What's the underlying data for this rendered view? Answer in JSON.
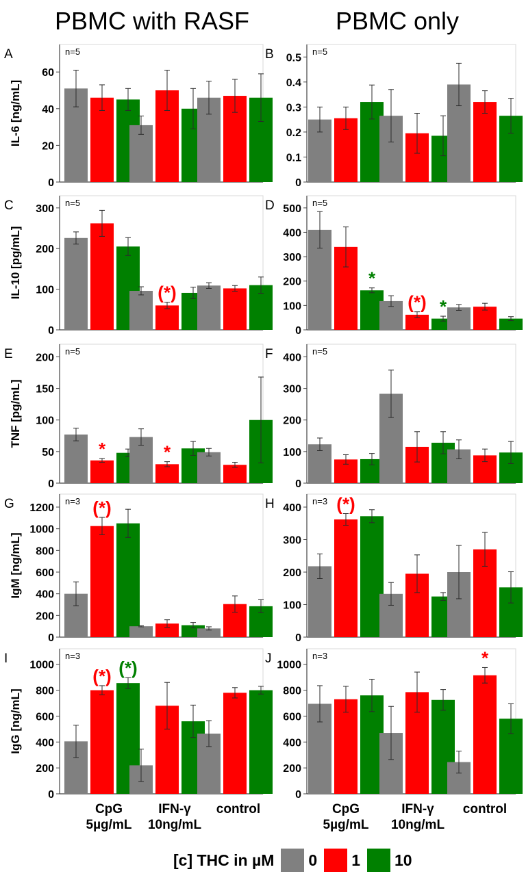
{
  "column_titles": [
    "PBMC with RASF",
    "PBMC only"
  ],
  "x_categories": [
    [
      "CpG",
      "5µg/mL"
    ],
    [
      "IFN-γ",
      "10ng/mL"
    ],
    [
      "control",
      ""
    ]
  ],
  "legend": {
    "title": "[c] THC in µM",
    "items": [
      {
        "label": "0",
        "color": "#808080"
      },
      {
        "label": "1",
        "color": "#ff0000"
      },
      {
        "label": "10",
        "color": "#008000"
      }
    ]
  },
  "colors": {
    "thc_0": "#808080",
    "thc_1": "#ff0000",
    "thc_10": "#008000"
  },
  "chart_data": [
    {
      "type": "bar",
      "panel": "A",
      "ylabel": "IL-6 [ng/mL]",
      "n_label": "n=5",
      "ylim": [
        0,
        75
      ],
      "yticks": [
        0,
        20,
        40,
        60
      ],
      "tick_labels": [
        "0",
        "20",
        "40",
        "60"
      ],
      "categories": [
        "CpG 5µg/mL",
        "IFN-γ 10ng/mL",
        "control"
      ],
      "series": [
        {
          "name": "0",
          "values": [
            51,
            31,
            46
          ],
          "errors": [
            10,
            5,
            9
          ]
        },
        {
          "name": "1",
          "values": [
            46,
            50,
            47
          ],
          "errors": [
            7,
            11,
            9
          ]
        },
        {
          "name": "10",
          "values": [
            45,
            40,
            46
          ],
          "errors": [
            6,
            11,
            13
          ]
        }
      ],
      "annotations": []
    },
    {
      "type": "bar",
      "panel": "B",
      "ylabel": "",
      "n_label": "n=5",
      "ylim": [
        0,
        0.55
      ],
      "yticks": [
        0,
        0.1,
        0.2,
        0.3,
        0.4,
        0.5
      ],
      "tick_labels": [
        "0",
        "0.1",
        "0.2",
        "0.3",
        "0.4",
        "0.5"
      ],
      "categories": [
        "CpG 5µg/mL",
        "IFN-γ 10ng/mL",
        "control"
      ],
      "series": [
        {
          "name": "0",
          "values": [
            0.25,
            0.265,
            0.39
          ],
          "errors": [
            0.05,
            0.105,
            0.085
          ]
        },
        {
          "name": "1",
          "values": [
            0.255,
            0.195,
            0.32
          ],
          "errors": [
            0.045,
            0.08,
            0.045
          ]
        },
        {
          "name": "10",
          "values": [
            0.32,
            0.185,
            0.265
          ],
          "errors": [
            0.068,
            0.08,
            0.07
          ]
        }
      ],
      "annotations": []
    },
    {
      "type": "bar",
      "panel": "C",
      "ylabel": "IL-10 [pg/mL]",
      "n_label": "n=5",
      "ylim": [
        0,
        330
      ],
      "yticks": [
        0,
        100,
        200,
        300
      ],
      "tick_labels": [
        "0",
        "100",
        "200",
        "300"
      ],
      "categories": [
        "CpG 5µg/mL",
        "IFN-γ 10ng/mL",
        "control"
      ],
      "series": [
        {
          "name": "0",
          "values": [
            226,
            96,
            109
          ],
          "errors": [
            15,
            10,
            7
          ]
        },
        {
          "name": "1",
          "values": [
            262,
            60,
            102
          ],
          "errors": [
            32,
            8,
            7
          ]
        },
        {
          "name": "10",
          "values": [
            205,
            91,
            110
          ],
          "errors": [
            22,
            14,
            20
          ]
        }
      ],
      "annotations": [
        {
          "category": 1,
          "series": 1,
          "text": "(*)"
        }
      ]
    },
    {
      "type": "bar",
      "panel": "D",
      "ylabel": "",
      "n_label": "n=5",
      "ylim": [
        0,
        550
      ],
      "yticks": [
        0,
        100,
        200,
        300,
        400,
        500
      ],
      "tick_labels": [
        "0",
        "100",
        "200",
        "300",
        "400",
        "500"
      ],
      "categories": [
        "CpG 5µg/mL",
        "IFN-γ 10ng/mL",
        "control"
      ],
      "series": [
        {
          "name": "0",
          "values": [
            410,
            118,
            92
          ],
          "errors": [
            75,
            22,
            12
          ]
        },
        {
          "name": "1",
          "values": [
            340,
            62,
            95
          ],
          "errors": [
            82,
            12,
            14
          ]
        },
        {
          "name": "10",
          "values": [
            162,
            46,
            46
          ],
          "errors": [
            10,
            10,
            8
          ]
        }
      ],
      "annotations": [
        {
          "category": 0,
          "series": 2,
          "text": "*"
        },
        {
          "category": 1,
          "series": 1,
          "text": "(*)"
        },
        {
          "category": 1,
          "series": 2,
          "text": "*"
        }
      ]
    },
    {
      "type": "bar",
      "panel": "E",
      "ylabel": "TNF [pg/mL]",
      "n_label": "n=5",
      "ylim": [
        0,
        220
      ],
      "yticks": [
        0,
        50,
        100,
        150,
        200
      ],
      "tick_labels": [
        "0",
        "50",
        "100",
        "150",
        "200"
      ],
      "categories": [
        "CpG 5µg/mL",
        "IFN-γ 10ng/mL",
        "control"
      ],
      "series": [
        {
          "name": "0",
          "values": [
            77,
            73,
            49
          ],
          "errors": [
            10,
            13,
            6
          ]
        },
        {
          "name": "1",
          "values": [
            36,
            30,
            29
          ],
          "errors": [
            3,
            4,
            4
          ]
        },
        {
          "name": "10",
          "values": [
            48,
            55,
            100
          ],
          "errors": [
            6,
            11,
            68
          ]
        }
      ],
      "annotations": [
        {
          "category": 0,
          "series": 1,
          "text": "*"
        },
        {
          "category": 1,
          "series": 1,
          "text": "*"
        }
      ]
    },
    {
      "type": "bar",
      "panel": "F",
      "ylabel": "",
      "n_label": "n=5",
      "ylim": [
        0,
        440
      ],
      "yticks": [
        0,
        100,
        200,
        300,
        400
      ],
      "tick_labels": [
        "0",
        "100",
        "200",
        "300",
        "400"
      ],
      "categories": [
        "CpG 5µg/mL",
        "IFN-γ 10ng/mL",
        "control"
      ],
      "series": [
        {
          "name": "0",
          "values": [
            123,
            283,
            107
          ],
          "errors": [
            20,
            75,
            30
          ]
        },
        {
          "name": "1",
          "values": [
            75,
            115,
            88
          ],
          "errors": [
            15,
            48,
            20
          ]
        },
        {
          "name": "10",
          "values": [
            76,
            128,
            97
          ],
          "errors": [
            18,
            35,
            35
          ]
        }
      ],
      "annotations": []
    },
    {
      "type": "bar",
      "panel": "G",
      "ylabel": "IgM [ng/mL]",
      "n_label": "n=3",
      "ylim": [
        0,
        1320
      ],
      "yticks": [
        0,
        200,
        400,
        600,
        800,
        1000,
        1200
      ],
      "tick_labels": [
        "0",
        "200",
        "400",
        "600",
        "800",
        "1000",
        "1200"
      ],
      "categories": [
        "CpG 5µg/mL",
        "IFN-γ 10ng/mL",
        "control"
      ],
      "series": [
        {
          "name": "0",
          "values": [
            400,
            100,
            80
          ],
          "errors": [
            110,
            5,
            15
          ]
        },
        {
          "name": "1",
          "values": [
            1025,
            125,
            305
          ],
          "errors": [
            80,
            35,
            75
          ]
        },
        {
          "name": "10",
          "values": [
            1050,
            110,
            285
          ],
          "errors": [
            130,
            25,
            60
          ]
        }
      ],
      "annotations": [
        {
          "category": 0,
          "series": 1,
          "text": "(*)"
        }
      ]
    },
    {
      "type": "bar",
      "panel": "H",
      "ylabel": "",
      "n_label": "n=3",
      "ylim": [
        0,
        440
      ],
      "yticks": [
        0,
        100,
        200,
        300,
        400
      ],
      "tick_labels": [
        "0",
        "100",
        "200",
        "300",
        "400"
      ],
      "categories": [
        "CpG 5µg/mL",
        "IFN-γ 10ng/mL",
        "control"
      ],
      "series": [
        {
          "name": "0",
          "values": [
            218,
            133,
            200
          ],
          "errors": [
            38,
            35,
            82
          ]
        },
        {
          "name": "1",
          "values": [
            362,
            195,
            270
          ],
          "errors": [
            18,
            58,
            52
          ]
        },
        {
          "name": "10",
          "values": [
            372,
            125,
            153
          ],
          "errors": [
            20,
            12,
            48
          ]
        }
      ],
      "annotations": [
        {
          "category": 0,
          "series": 1,
          "text": "(*)"
        }
      ]
    },
    {
      "type": "bar",
      "panel": "I",
      "ylabel": "IgG [ng/mL]",
      "n_label": "n=3",
      "ylim": [
        0,
        1120
      ],
      "yticks": [
        0,
        200,
        400,
        600,
        800,
        1000
      ],
      "tick_labels": [
        "0",
        "200",
        "400",
        "600",
        "800",
        "1000"
      ],
      "categories": [
        "CpG 5µg/mL",
        "IFN-γ 10ng/mL",
        "control"
      ],
      "series": [
        {
          "name": "0",
          "values": [
            405,
            220,
            465
          ],
          "errors": [
            125,
            125,
            100
          ]
        },
        {
          "name": "1",
          "values": [
            800,
            680,
            780
          ],
          "errors": [
            35,
            180,
            40
          ]
        },
        {
          "name": "10",
          "values": [
            855,
            560,
            800
          ],
          "errors": [
            42,
            125,
            30
          ]
        }
      ],
      "annotations": [
        {
          "category": 0,
          "series": 1,
          "text": "(*)"
        },
        {
          "category": 0,
          "series": 2,
          "text": "(*)"
        }
      ]
    },
    {
      "type": "bar",
      "panel": "J",
      "ylabel": "",
      "n_label": "n=3",
      "ylim": [
        0,
        1120
      ],
      "yticks": [
        0,
        200,
        400,
        600,
        800,
        1000
      ],
      "tick_labels": [
        "0",
        "200",
        "400",
        "600",
        "800",
        "1000"
      ],
      "categories": [
        "CpG 5µg/mL",
        "IFN-γ 10ng/mL",
        "control"
      ],
      "series": [
        {
          "name": "0",
          "values": [
            695,
            470,
            245
          ],
          "errors": [
            140,
            205,
            85
          ]
        },
        {
          "name": "1",
          "values": [
            730,
            785,
            915
          ],
          "errors": [
            100,
            155,
            60
          ]
        },
        {
          "name": "10",
          "values": [
            760,
            725,
            580
          ],
          "errors": [
            125,
            80,
            115
          ]
        }
      ],
      "annotations": [
        {
          "category": 2,
          "series": 1,
          "text": "*"
        }
      ]
    }
  ]
}
